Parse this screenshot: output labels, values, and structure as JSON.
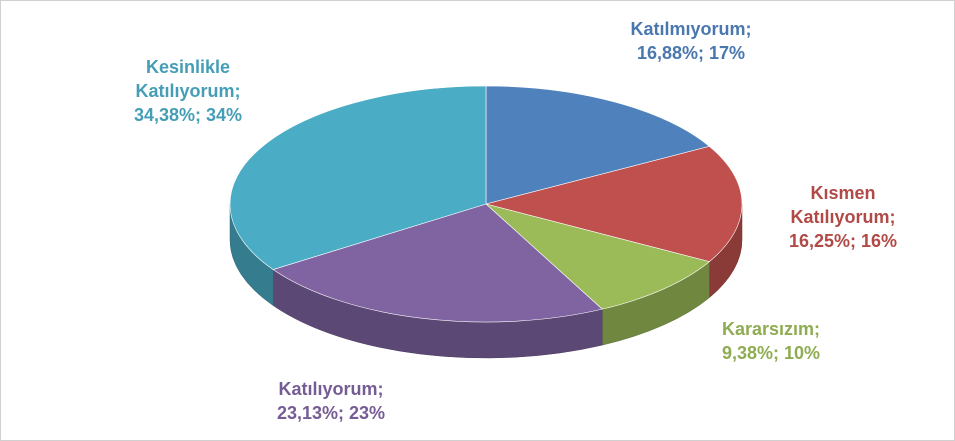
{
  "chart_data": {
    "type": "pie3d",
    "categories": [
      "Katılmıyorum;",
      "Kısmen Katılıyorum;",
      "Kararsızım;",
      "Katılıyorum;",
      "Kesinlikle Katılıyorum;"
    ],
    "values": [
      16.88,
      16.25,
      9.38,
      23.13,
      34.38
    ],
    "value_labels": [
      "16,88%; 17%",
      "16,25%; 16%",
      "9,38%; 10%",
      "23,13%; 23%",
      "34,38%; 34%"
    ],
    "colors": [
      "#4f81bd",
      "#c0504d",
      "#9bbb59",
      "#8064a2",
      "#4bacc6"
    ]
  }
}
